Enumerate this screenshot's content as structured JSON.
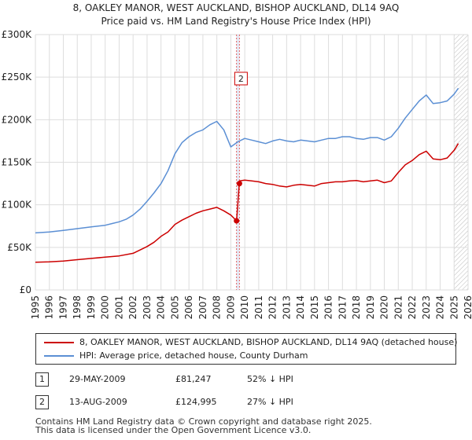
{
  "title": {
    "line1": "8, OAKLEY MANOR, WEST AUCKLAND, BISHOP AUCKLAND, DL14 9AQ",
    "line2": "Price paid vs. HM Land Registry's House Price Index (HPI)"
  },
  "colors": {
    "property_line": "#cc0000",
    "hpi_line": "#5b8fd4",
    "grid": "#dddddd",
    "marker_dash": "#e06060",
    "band": "#e4e9f5"
  },
  "chart_data": {
    "type": "line",
    "title": "8, OAKLEY MANOR, WEST AUCKLAND, BISHOP AUCKLAND, DL14 9AQ — Price paid vs. HM Land Registry's House Price Index (HPI)",
    "xlabel": "",
    "ylabel": "",
    "xlim": [
      1995,
      2026
    ],
    "ylim": [
      0,
      300000
    ],
    "grid": true,
    "x_ticks": [
      "1995",
      "1996",
      "1997",
      "1998",
      "1999",
      "2000",
      "2001",
      "2002",
      "2003",
      "2004",
      "2005",
      "2006",
      "2007",
      "2008",
      "2009",
      "2010",
      "2011",
      "2012",
      "2013",
      "2014",
      "2015",
      "2016",
      "2017",
      "2018",
      "2019",
      "2020",
      "2021",
      "2022",
      "2023",
      "2024",
      "2025",
      "2026"
    ],
    "y_ticks": [
      "£0",
      "£50K",
      "£100K",
      "£150K",
      "£200K",
      "£250K",
      "£300K"
    ],
    "y_tick_values": [
      0,
      50000,
      100000,
      150000,
      200000,
      250000,
      300000
    ],
    "series": [
      {
        "name": "8, OAKLEY MANOR, WEST AUCKLAND, BISHOP AUCKLAND, DL14 9AQ (detached house)",
        "color": "#cc0000",
        "x": [
          1995.0,
          1996.0,
          1997.0,
          1998.0,
          1999.0,
          2000.0,
          2001.0,
          2002.0,
          2003.0,
          2003.5,
          2004.0,
          2004.5,
          2005.0,
          2005.5,
          2006.0,
          2006.5,
          2007.0,
          2007.5,
          2008.0,
          2008.5,
          2009.0,
          2009.41,
          2009.42,
          2009.61,
          2009.62,
          2010.0,
          2010.5,
          2011.0,
          2011.5,
          2012.0,
          2012.5,
          2013.0,
          2013.5,
          2014.0,
          2014.5,
          2015.0,
          2015.5,
          2016.0,
          2016.5,
          2017.0,
          2017.5,
          2018.0,
          2018.5,
          2019.0,
          2019.5,
          2020.0,
          2020.5,
          2021.0,
          2021.5,
          2022.0,
          2022.5,
          2023.0,
          2023.5,
          2024.0,
          2024.5,
          2025.0,
          2025.3
        ],
        "y": [
          32500,
          33000,
          34000,
          35500,
          37000,
          38500,
          40000,
          43000,
          51000,
          56000,
          63000,
          68000,
          77000,
          82000,
          86000,
          90000,
          93000,
          95000,
          97000,
          93000,
          88000,
          81247,
          82000,
          124995,
          128000,
          129000,
          128000,
          127000,
          125000,
          124000,
          122000,
          121000,
          123000,
          124000,
          123000,
          122000,
          125000,
          126000,
          127000,
          127000,
          128000,
          128500,
          127000,
          128000,
          129000,
          126000,
          128000,
          138000,
          147000,
          152000,
          159000,
          163000,
          154000,
          153000,
          155000,
          164000,
          172000
        ]
      },
      {
        "name": "HPI: Average price, detached house, County Durham",
        "color": "#5b8fd4",
        "x": [
          1995.0,
          1996.0,
          1997.0,
          1998.0,
          1999.0,
          2000.0,
          2000.5,
          2001.0,
          2001.5,
          2002.0,
          2002.5,
          2003.0,
          2003.5,
          2004.0,
          2004.5,
          2005.0,
          2005.5,
          2006.0,
          2006.5,
          2007.0,
          2007.5,
          2008.0,
          2008.5,
          2009.0,
          2009.5,
          2010.0,
          2010.5,
          2011.0,
          2011.5,
          2012.0,
          2012.5,
          2013.0,
          2013.5,
          2014.0,
          2014.5,
          2015.0,
          2015.5,
          2016.0,
          2016.5,
          2017.0,
          2017.5,
          2018.0,
          2018.5,
          2019.0,
          2019.5,
          2020.0,
          2020.5,
          2021.0,
          2021.5,
          2022.0,
          2022.5,
          2023.0,
          2023.5,
          2024.0,
          2024.5,
          2025.0,
          2025.3
        ],
        "y": [
          67000,
          68000,
          70000,
          72000,
          74000,
          76000,
          78000,
          80000,
          83000,
          88000,
          95000,
          104000,
          114000,
          125000,
          140000,
          160000,
          173000,
          180000,
          185000,
          188000,
          194000,
          198000,
          188000,
          168000,
          174000,
          178000,
          176000,
          174000,
          172000,
          175000,
          177000,
          175000,
          174000,
          176000,
          175000,
          174000,
          176000,
          178000,
          178000,
          180000,
          180000,
          178000,
          177000,
          179000,
          179000,
          176000,
          180000,
          190000,
          202000,
          212000,
          222000,
          229000,
          219000,
          220000,
          222000,
          230000,
          237000
        ]
      }
    ],
    "sales": [
      {
        "label": "1",
        "x": 2009.41,
        "y": 81247
      },
      {
        "label": "2",
        "x": 2009.62,
        "y": 124995
      }
    ],
    "forecast_from": 2025.0
  },
  "legend": {
    "property_label": "8, OAKLEY MANOR, WEST AUCKLAND, BISHOP AUCKLAND, DL14 9AQ (detached house)",
    "hpi_label": "HPI: Average price, detached house, County Durham"
  },
  "transactions": [
    {
      "num": "1",
      "date": "29-MAY-2009",
      "price": "£81,247",
      "hpi": "52% ↓ HPI"
    },
    {
      "num": "2",
      "date": "13-AUG-2009",
      "price": "£124,995",
      "hpi": "27% ↓ HPI"
    }
  ],
  "footer": {
    "line1": "Contains HM Land Registry data © Crown copyright and database right 2025.",
    "line2": "This data is licensed under the Open Government Licence v3.0."
  }
}
